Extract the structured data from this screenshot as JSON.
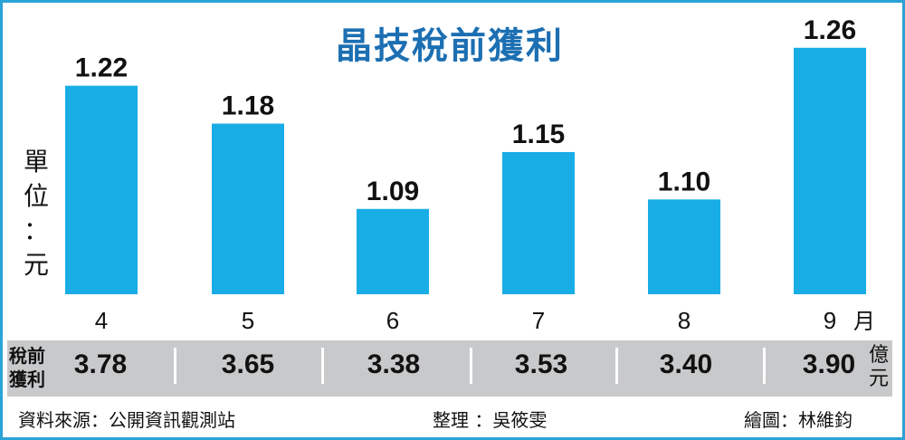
{
  "title": "晶技稅前獲利",
  "unit_label": [
    "單",
    "位",
    "：",
    "元"
  ],
  "month_suffix": "月",
  "chart_data": {
    "type": "bar",
    "title": "晶技稅前獲利",
    "ylabel": "單位：元",
    "xlabel": "月",
    "categories": [
      "4",
      "5",
      "6",
      "7",
      "8",
      "9"
    ],
    "values": [
      1.22,
      1.18,
      1.09,
      1.15,
      1.1,
      1.26
    ],
    "value_labels": [
      "1.22",
      "1.18",
      "1.09",
      "1.15",
      "1.10",
      "1.26"
    ],
    "bar_color": "#19ade6",
    "grid": false
  },
  "pretax_profit": {
    "label": [
      "稅前",
      "獲利"
    ],
    "values": [
      "3.78",
      "3.65",
      "3.38",
      "3.53",
      "3.40",
      "3.90"
    ],
    "unit": [
      "億",
      "元"
    ]
  },
  "footer": {
    "source": "資料來源：公開資訊觀測站",
    "compiled": "整理 ：吳筱雯",
    "drawn": "繪圖：林維鈞"
  },
  "colors": {
    "frame": "#2aa3d6",
    "title": "#1c6fb2",
    "band": "#c8c9cb"
  }
}
